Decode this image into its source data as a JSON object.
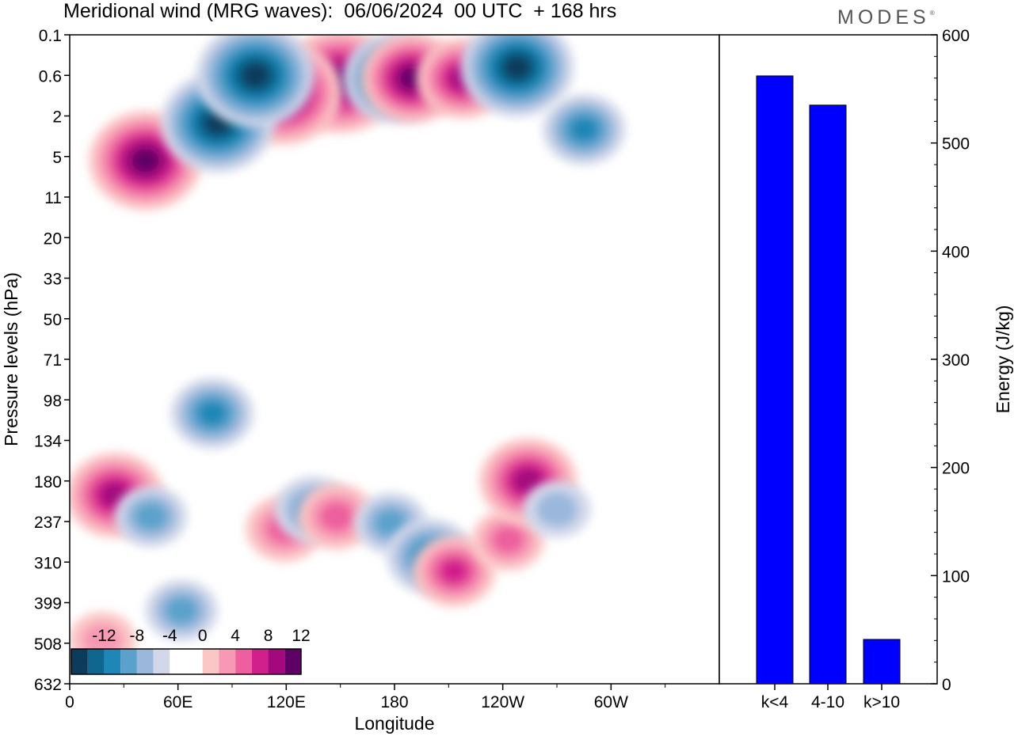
{
  "header": {
    "title": "Meridional wind (MRG waves):  06/06/2024  00 UTC  + 168 hrs",
    "logo": "MODES"
  },
  "chart_data": [
    {
      "type": "heatmap",
      "name": "meridional-wind-contour",
      "xlabel": "Longitude",
      "ylabel": "Pressure levels (hPa)",
      "x_ticks": [
        "0",
        "60E",
        "120E",
        "180",
        "120W",
        "60W"
      ],
      "y_ticks": [
        "0.1",
        "0.6",
        "2",
        "5",
        "11",
        "20",
        "33",
        "50",
        "71",
        "98",
        "134",
        "180",
        "237",
        "310",
        "399",
        "508",
        "632"
      ],
      "colorbar": {
        "labels": [
          "-12",
          "-8",
          "-4",
          "0",
          "4",
          "8",
          "12"
        ],
        "colors": [
          "#0d3b5b",
          "#0f668f",
          "#1f87b7",
          "#5aa2cc",
          "#9ab8dc",
          "#d2d8ea",
          "#ffffff",
          "#ffffff",
          "#fbc6c6",
          "#f799b4",
          "#ed5f9e",
          "#d11f8c",
          "#a3087d",
          "#5e0066"
        ]
      },
      "blobs": [
        {
          "lon": 150,
          "lev": 0.8,
          "v": 14
        },
        {
          "lon": 118,
          "lev": 1.2,
          "v": 14
        },
        {
          "lon": 42,
          "lev": 5.6,
          "v": 13
        },
        {
          "lon": 82,
          "lev": 2.5,
          "v": -13
        },
        {
          "lon": 103,
          "lev": 0.6,
          "v": -14
        },
        {
          "lon": 180,
          "lev": 0.7,
          "v": -11
        },
        {
          "lon": 190,
          "lev": 0.7,
          "v": 11
        },
        {
          "lon": 218,
          "lev": 0.7,
          "v": 9
        },
        {
          "lon": 248,
          "lev": 0.5,
          "v": -13
        },
        {
          "lon": 285,
          "lev": 3.0,
          "v": -7
        },
        {
          "lon": 25,
          "lev": 200,
          "v": 10
        },
        {
          "lon": 45,
          "lev": 230,
          "v": -5
        },
        {
          "lon": 79,
          "lev": 110,
          "v": -7
        },
        {
          "lon": 119,
          "lev": 250,
          "v": 6
        },
        {
          "lon": 135,
          "lev": 220,
          "v": -6
        },
        {
          "lon": 148,
          "lev": 230,
          "v": 6
        },
        {
          "lon": 178,
          "lev": 240,
          "v": -5
        },
        {
          "lon": 200,
          "lev": 300,
          "v": -8
        },
        {
          "lon": 213,
          "lev": 330,
          "v": 7
        },
        {
          "lon": 243,
          "lev": 270,
          "v": 5
        },
        {
          "lon": 254,
          "lev": 180,
          "v": 10
        },
        {
          "lon": 270,
          "lev": 220,
          "v": -4
        },
        {
          "lon": 18,
          "lev": 500,
          "v": 4
        },
        {
          "lon": 62,
          "lev": 420,
          "v": -5
        }
      ]
    },
    {
      "type": "bar",
      "name": "energy-bars",
      "categories": [
        "k<4",
        "4-10",
        "k>10"
      ],
      "values": [
        562,
        535,
        41
      ],
      "ylabel": "Energy (J/kg)",
      "ylim": [
        0,
        600
      ],
      "y_ticks": [
        0,
        100,
        200,
        300,
        400,
        500,
        600
      ],
      "bar_color": "#0000ff"
    }
  ]
}
